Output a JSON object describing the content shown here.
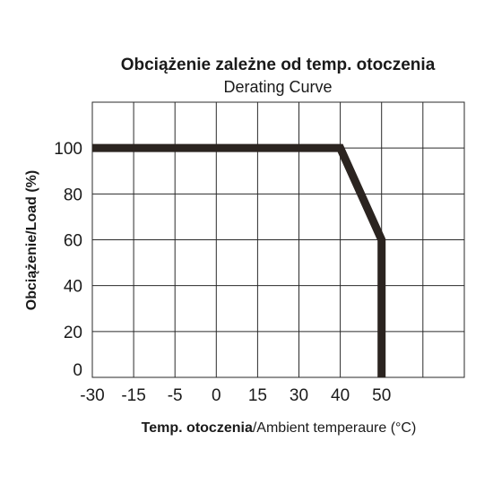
{
  "chart_data": {
    "type": "line",
    "title": "Obciążenie zależne od temp. otoczenia",
    "subtitle": "Derating Curve",
    "xlabel_bold": "Temp. otoczenia",
    "xlabel_rest": "/Ambient temperaure (°C)",
    "ylabel": "Obciążenie/Load (%)",
    "x_ticks": [
      "-30",
      "-15",
      "-5",
      "0",
      "15",
      "30",
      "40",
      "50"
    ],
    "y_ticks": [
      "0",
      "20",
      "40",
      "60",
      "80",
      "100"
    ],
    "ylim": [
      0,
      120
    ],
    "grid": true,
    "series": [
      {
        "points": [
          {
            "x": "-30",
            "y": 100
          },
          {
            "x": "40",
            "y": 100
          },
          {
            "x": "50",
            "y": 60
          },
          {
            "x": "50",
            "y": 0
          }
        ]
      }
    ],
    "colors": {
      "line": "#2b2420",
      "grid": "#2a2a2a",
      "text": "#1a1a1a"
    }
  }
}
